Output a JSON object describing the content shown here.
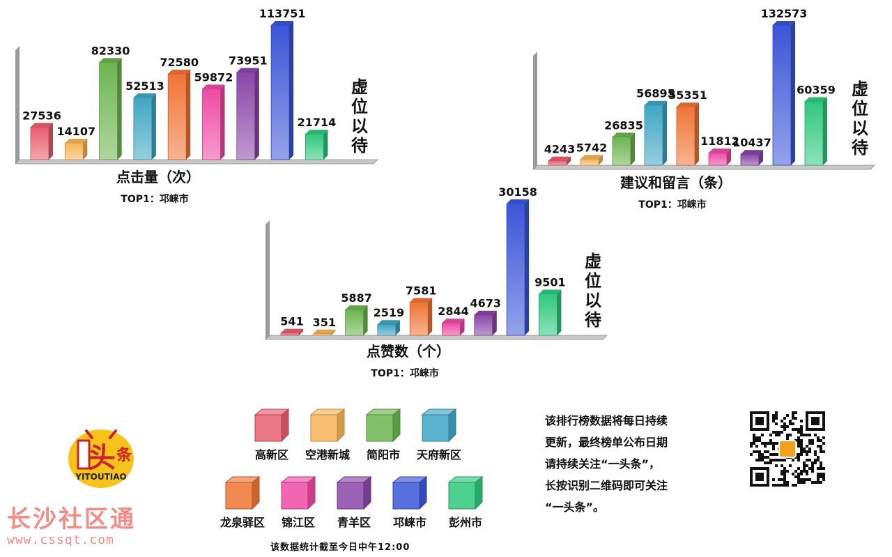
{
  "colors": {
    "高新区": "#e85e6e",
    "空港新城": "#f7b557",
    "简阳市": "#6cb550",
    "天府新区": "#3fa6c4",
    "龙泉驿区": "#f07435",
    "锦江区": "#ee4aa4",
    "青羊区": "#8a46a8",
    "邛崃市": "#3b55d8",
    "彭州市": "#2fc87e"
  },
  "chart_data": [
    {
      "type": "bar",
      "title": "点击量（次）",
      "subtitle": "TOP1：邛崃市",
      "categories": [
        "高新区",
        "空港新城",
        "简阳市",
        "天府新区",
        "龙泉驿区",
        "锦江区",
        "青羊区",
        "邛崃市",
        "彭州市"
      ],
      "values": [
        27536,
        14107,
        82330,
        52513,
        72580,
        59872,
        73951,
        113751,
        21714
      ],
      "placeholder": [
        "虚",
        "位",
        "以",
        "待"
      ]
    },
    {
      "type": "bar",
      "title": "建议和留言（条）",
      "subtitle": "TOP1：邛崃市",
      "categories": [
        "高新区",
        "空港新城",
        "简阳市",
        "天府新区",
        "龙泉驿区",
        "锦江区",
        "青羊区",
        "邛崃市",
        "彭州市"
      ],
      "values": [
        4243,
        5742,
        26835,
        56895,
        55351,
        11812,
        10437,
        132573,
        60359
      ],
      "placeholder": [
        "虚",
        "位",
        "以",
        "待"
      ]
    },
    {
      "type": "bar",
      "title": "点赞数（个）",
      "subtitle": "TOP1：邛崃市",
      "categories": [
        "高新区",
        "空港新城",
        "简阳市",
        "天府新区",
        "龙泉驿区",
        "锦江区",
        "青羊区",
        "邛崃市",
        "彭州市"
      ],
      "values": [
        541,
        351,
        5887,
        2519,
        7581,
        2844,
        4673,
        30158,
        9501
      ],
      "placeholder": [
        "虚",
        "位",
        "以",
        "待"
      ]
    }
  ],
  "legend": {
    "row1": [
      "高新区",
      "空港新城",
      "简阳市",
      "天府新区"
    ],
    "row2": [
      "龙泉驿区",
      "锦江区",
      "青羊区",
      "邛崃市",
      "彭州市"
    ]
  },
  "footnote": "该数据统计截至今日中午12:00",
  "notice": {
    "lines": [
      "该排行榜数据将每日持续",
      "更新，最终榜单公布日期",
      "请持续关注“一头条”，",
      "长按识别二维码即可关注",
      "“一头条”。"
    ]
  },
  "logo": {
    "main": "头",
    "side": "条",
    "bottom": "YITOUTIAO"
  },
  "watermark": {
    "title": "长沙社区通",
    "url": "www.cssqt.com"
  }
}
